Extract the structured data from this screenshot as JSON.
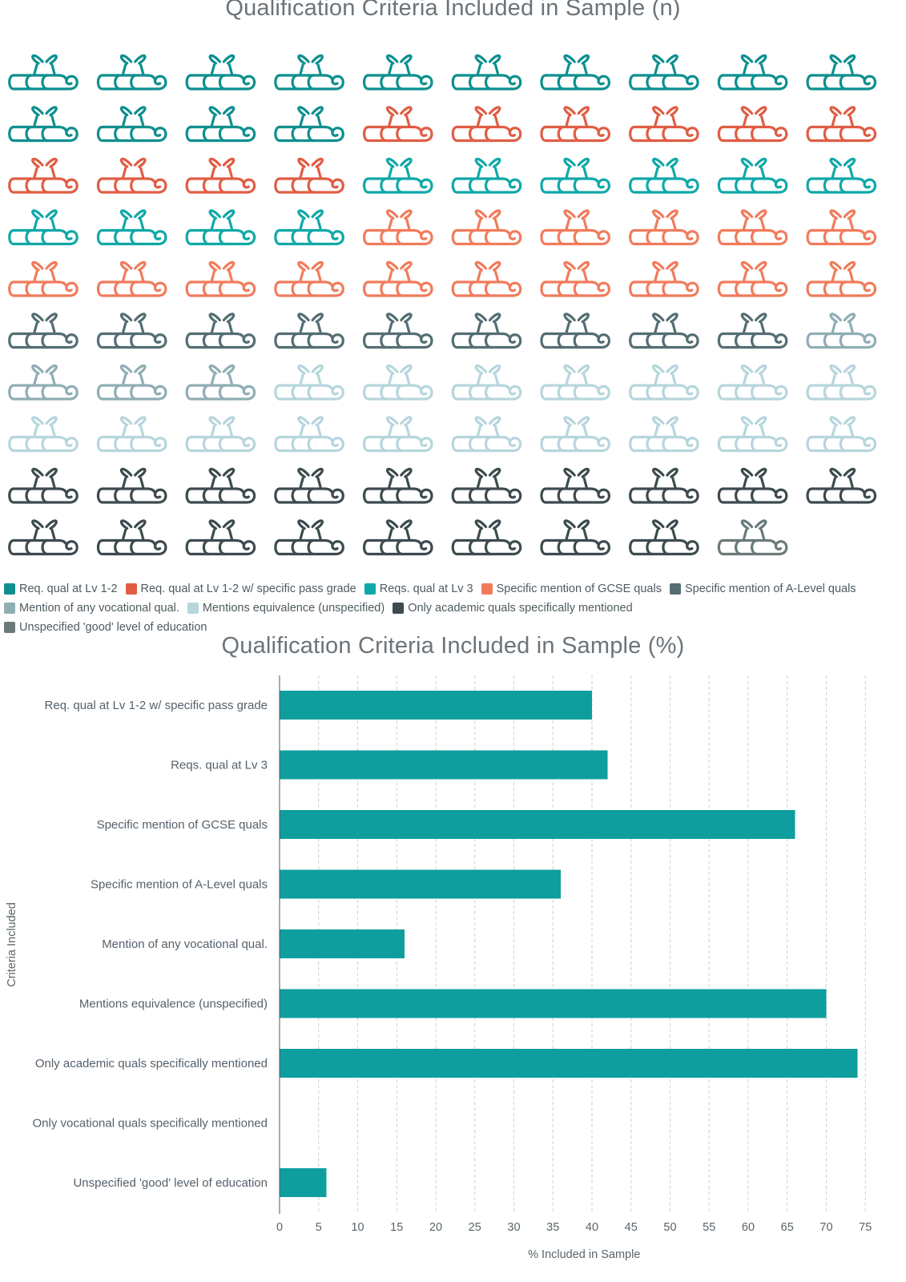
{
  "colors": {
    "req_lv12": "#0e8f8f",
    "req_lv12_grade": "#e05d44",
    "req_lv3": "#11a8a8",
    "gcse": "#f07c5c",
    "alevel": "#546e73",
    "vocational": "#8faeb3",
    "equivalence": "#b6d6dc",
    "academic_only": "#3d4b4f",
    "good_level": "#6a7a7a",
    "bar": "#0f9e9e",
    "grid": "#cfcfcf",
    "axis": "#333333"
  },
  "pictogram": {
    "title": "Qualification Criteria Included in Sample (n)",
    "icon_name": "diploma-scroll-icon",
    "counts": [
      {
        "key": "req_lv12",
        "count": 14
      },
      {
        "key": "req_lv12_grade",
        "count": 10
      },
      {
        "key": "req_lv3",
        "count": 10
      },
      {
        "key": "gcse",
        "count": 16
      },
      {
        "key": "alevel",
        "count": 9
      },
      {
        "key": "vocational",
        "count": 4
      },
      {
        "key": "equivalence",
        "count": 17
      },
      {
        "key": "academic_only",
        "count": 18
      },
      {
        "key": "good_level",
        "count": 1
      }
    ]
  },
  "legend": {
    "rows": [
      [
        {
          "key": "req_lv12",
          "label": "Req. qual at Lv 1-2"
        },
        {
          "key": "req_lv12_grade",
          "label": "Req. qual at Lv 1-2 w/ specific pass grade"
        },
        {
          "key": "req_lv3",
          "label": "Reqs. qual at Lv 3"
        },
        {
          "key": "gcse",
          "label": "Specific mention of GCSE quals"
        },
        {
          "key": "alevel",
          "label": "Specific mention of A-Level quals"
        }
      ],
      [
        {
          "key": "vocational",
          "label": "Mention of any vocational qual."
        },
        {
          "key": "equivalence",
          "label": "Mentions equivalence (unspecified)"
        },
        {
          "key": "academic_only",
          "label": "Only academic quals specifically mentioned"
        }
      ],
      [
        {
          "key": "good_level",
          "label": "Unspecified 'good' level of education"
        }
      ]
    ]
  },
  "chart_data": {
    "type": "bar",
    "orientation": "horizontal",
    "title": "Qualification Criteria Included in Sample (%)",
    "xlabel": "% Included in Sample",
    "ylabel": "Criteria Included",
    "xlim": [
      0,
      77
    ],
    "xticks": [
      0,
      5,
      10,
      15,
      20,
      25,
      30,
      35,
      40,
      45,
      50,
      55,
      60,
      65,
      70,
      75
    ],
    "grid": "vertical-dashed",
    "categories": [
      "Req. qual at Lv 1-2 w/ specific pass grade",
      "Reqs. qual at Lv 3",
      "Specific mention of GCSE quals",
      "Specific mention of A-Level quals",
      "Mention of any vocational qual.",
      "Mentions equivalence (unspecified)",
      "Only academic quals specifically mentioned",
      "Only vocational quals specifically mentioned",
      "Unspecified 'good' level of education"
    ],
    "values": [
      40,
      42,
      66,
      36,
      16,
      70,
      74,
      0,
      6
    ]
  }
}
